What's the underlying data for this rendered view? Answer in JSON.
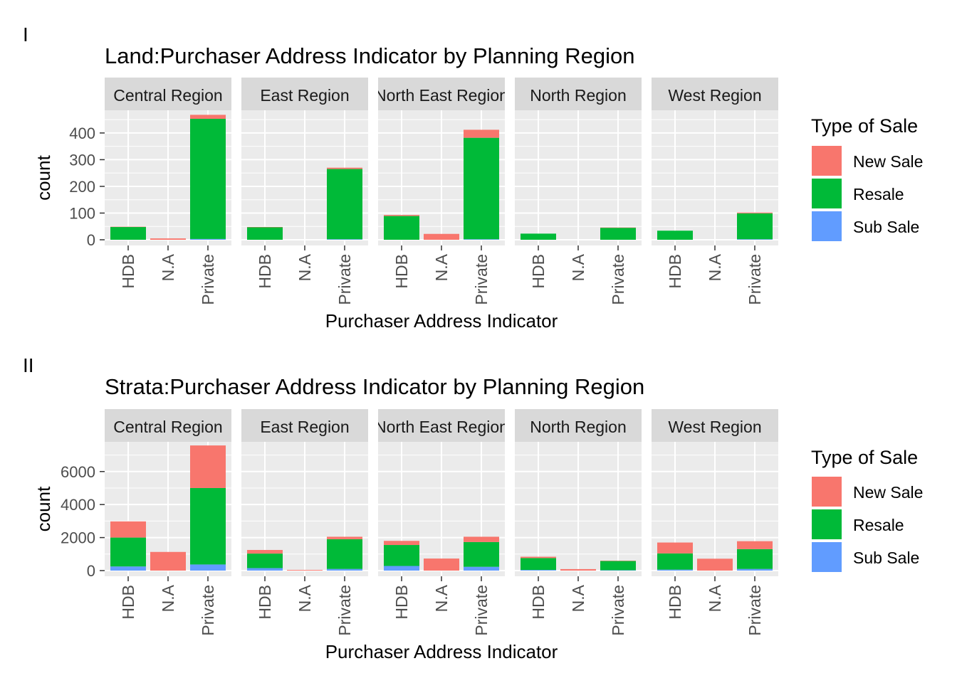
{
  "colors": {
    "New Sale": "#F8766D",
    "Resale": "#00BA38",
    "Sub Sale": "#619CFF",
    "panel_bg": "#EBEBEB",
    "strip_bg": "#D9D9D9",
    "grid": "#FFFFFF",
    "text_dark": "#1A1A1A",
    "text_axis": "#4D4D4D"
  },
  "chart_data": [
    {
      "type": "bar",
      "tag": "I",
      "title": "Land:Purchaser Address Indicator by Planning Region",
      "xlabel": "Purchaser Address Indicator",
      "ylabel": "count",
      "ylim": [
        0,
        485
      ],
      "yticks": [
        0,
        100,
        200,
        300,
        400
      ],
      "categories": [
        "HDB",
        "N.A",
        "Private"
      ],
      "facets": [
        "Central Region",
        "East Region",
        "North East Region",
        "North Region",
        "West Region"
      ],
      "legend": {
        "title": "Type of Sale",
        "entries": [
          "New Sale",
          "Resale",
          "Sub Sale"
        ],
        "position": "right"
      },
      "stacked": true,
      "grid": true,
      "data": {
        "Central Region": {
          "HDB": {
            "Sub Sale": 0,
            "Resale": 48,
            "New Sale": 1
          },
          "N.A": {
            "Sub Sale": 0,
            "Resale": 0,
            "New Sale": 5
          },
          "Private": {
            "Sub Sale": 3,
            "Resale": 450,
            "New Sale": 15
          }
        },
        "East Region": {
          "HDB": {
            "Sub Sale": 0,
            "Resale": 47,
            "New Sale": 1
          },
          "N.A": {
            "Sub Sale": 0,
            "Resale": 0,
            "New Sale": 0
          },
          "Private": {
            "Sub Sale": 2,
            "Resale": 263,
            "New Sale": 5
          }
        },
        "North East Region": {
          "HDB": {
            "Sub Sale": 0,
            "Resale": 89,
            "New Sale": 4
          },
          "N.A": {
            "Sub Sale": 0,
            "Resale": 0,
            "New Sale": 22
          },
          "Private": {
            "Sub Sale": 2,
            "Resale": 380,
            "New Sale": 30
          }
        },
        "North Region": {
          "HDB": {
            "Sub Sale": 0,
            "Resale": 23,
            "New Sale": 0
          },
          "N.A": {
            "Sub Sale": 0,
            "Resale": 0,
            "New Sale": 0
          },
          "Private": {
            "Sub Sale": 0,
            "Resale": 45,
            "New Sale": 1
          }
        },
        "West Region": {
          "HDB": {
            "Sub Sale": 0,
            "Resale": 34,
            "New Sale": 0
          },
          "N.A": {
            "Sub Sale": 0,
            "Resale": 0,
            "New Sale": 0
          },
          "Private": {
            "Sub Sale": 2,
            "Resale": 97,
            "New Sale": 3
          }
        }
      }
    },
    {
      "type": "bar",
      "tag": "II",
      "title": "Strata:Purchaser Address Indicator by Planning Region",
      "xlabel": "Purchaser Address Indicator",
      "ylabel": "count",
      "ylim": [
        0,
        7800
      ],
      "yticks": [
        0,
        2000,
        4000,
        6000
      ],
      "categories": [
        "HDB",
        "N.A",
        "Private"
      ],
      "facets": [
        "Central Region",
        "East Region",
        "North East Region",
        "North Region",
        "West Region"
      ],
      "legend": {
        "title": "Type of Sale",
        "entries": [
          "New Sale",
          "Resale",
          "Sub Sale"
        ],
        "position": "right"
      },
      "stacked": true,
      "grid": true,
      "data": {
        "Central Region": {
          "HDB": {
            "Sub Sale": 250,
            "Resale": 1750,
            "New Sale": 980
          },
          "N.A": {
            "Sub Sale": 0,
            "Resale": 0,
            "New Sale": 1130
          },
          "Private": {
            "Sub Sale": 370,
            "Resale": 4630,
            "New Sale": 2580
          }
        },
        "East Region": {
          "HDB": {
            "Sub Sale": 150,
            "Resale": 880,
            "New Sale": 220
          },
          "N.A": {
            "Sub Sale": 0,
            "Resale": 0,
            "New Sale": 40
          },
          "Private": {
            "Sub Sale": 100,
            "Resale": 1800,
            "New Sale": 150
          }
        },
        "North East Region": {
          "HDB": {
            "Sub Sale": 280,
            "Resale": 1270,
            "New Sale": 250
          },
          "N.A": {
            "Sub Sale": 0,
            "Resale": 0,
            "New Sale": 730
          },
          "Private": {
            "Sub Sale": 230,
            "Resale": 1500,
            "New Sale": 320
          }
        },
        "North Region": {
          "HDB": {
            "Sub Sale": 40,
            "Resale": 720,
            "New Sale": 80
          },
          "N.A": {
            "Sub Sale": 0,
            "Resale": 0,
            "New Sale": 90
          },
          "Private": {
            "Sub Sale": 20,
            "Resale": 560,
            "New Sale": 20
          }
        },
        "West Region": {
          "HDB": {
            "Sub Sale": 60,
            "Resale": 980,
            "New Sale": 660
          },
          "N.A": {
            "Sub Sale": 0,
            "Resale": 0,
            "New Sale": 720
          },
          "Private": {
            "Sub Sale": 100,
            "Resale": 1200,
            "New Sale": 480
          }
        }
      }
    }
  ]
}
